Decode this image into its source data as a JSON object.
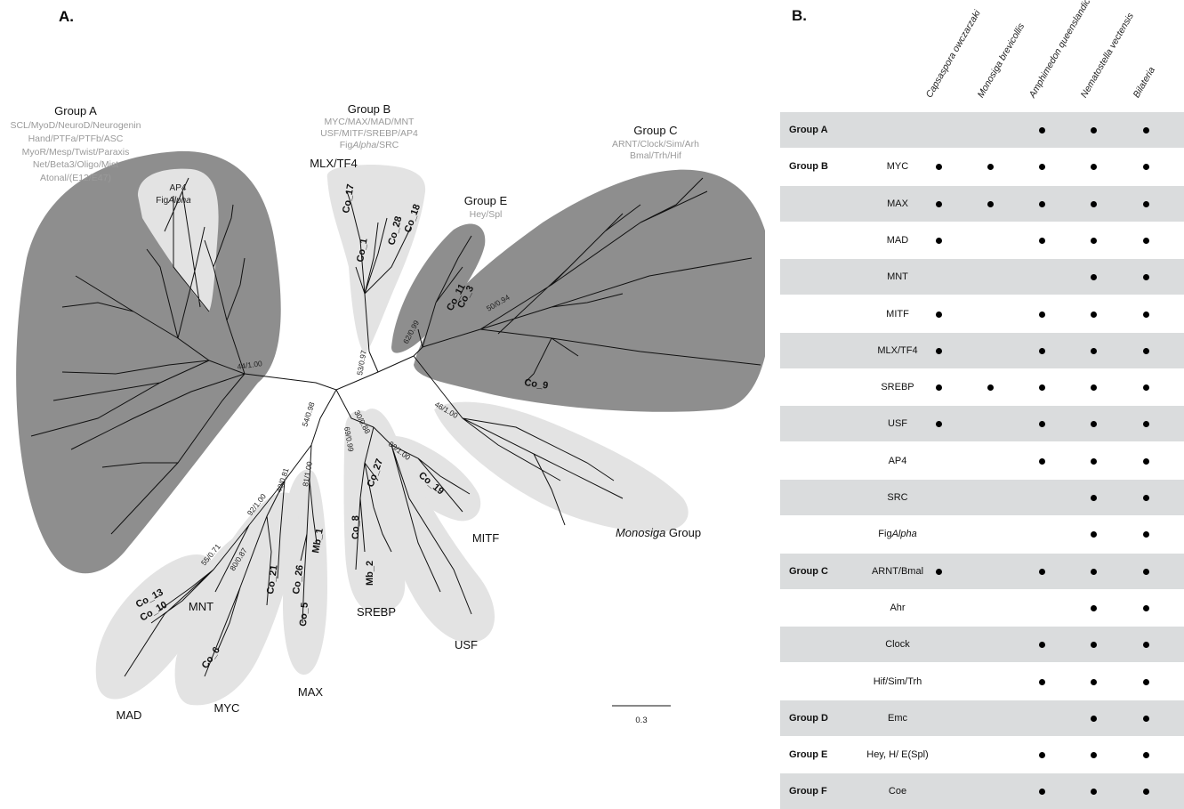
{
  "tree": {
    "panel_label": "A.",
    "groups": {
      "A": {
        "title": "Group A",
        "subtitle": [
          "SCL/MyoD/NeuroD/Neurogenin",
          "Hand/PTFa/PTFb/ASC",
          "MyoR/Mesp/Twist/Paraxis",
          "Net/Beta3/Oligo/Mist",
          "Atonal/(E12/E47)"
        ]
      },
      "B": {
        "title": "Group B",
        "subtitle_1": "MYC/MAX/MAD/MNT",
        "subtitle_2": "USF/MITF/SREBP/AP4",
        "subtitle_3_prefix": "Fig",
        "subtitle_3_italic": "Alpha",
        "subtitle_3_suffix": "/SRC"
      },
      "C": {
        "title": "Group C",
        "subtitle": [
          "ARNT/Clock/Sim/Arh",
          "Bmal/Trh/Hif"
        ]
      },
      "E": {
        "title": "Group E",
        "subtitle": [
          "Hey/Spl"
        ]
      }
    },
    "ap4": {
      "line1": "AP4",
      "line2_prefix": "Fig",
      "line2_italic": "Alpha"
    },
    "clades": {
      "mlx": "MLX/TF4",
      "mad": "MAD",
      "mnt": "MNT",
      "myc": "MYC",
      "max": "MAX",
      "srebp": "SREBP",
      "usf": "USF",
      "mitf": "MITF",
      "monosiga_italic": "Monosiga",
      "monosiga_suffix": " Group"
    },
    "leaves": {
      "co17": "Co_17",
      "co1": "Co_1",
      "co28": "Co_28",
      "co18": "Co_18",
      "co11": "Co_11",
      "co3": "Co_3",
      "co9": "Co_9",
      "co13": "Co_13",
      "co10": "Co_10",
      "co6": "Co_6",
      "co21": "Co_21",
      "co26": "Co_26",
      "mb1": "Mb_1",
      "co5": "Co_5",
      "co8": "Co_8",
      "mb2": "Mb_2",
      "co27": "Co_27",
      "co19": "Co_19"
    },
    "supports": {
      "s44": "44/1.00",
      "s53": "53/0.97",
      "s62": "62/0.99",
      "s50": "50/0.94",
      "s54": "54/0.98",
      "s92": "92/1.00",
      "s40": "40/0.81",
      "s81": "81/1.00",
      "s55": "55/0.71",
      "s80": "80/0.87",
      "s69": "69/0.99",
      "s30": "30/0.88",
      "s88": "88/1.00",
      "s46": "46/1.00"
    },
    "scale_label": "0.3",
    "colors": {
      "dark_group": "#8e8e8e",
      "light_group": "#e3e3e3",
      "branch": "#111111"
    }
  },
  "table": {
    "panel_label": "B.",
    "species": [
      "Capsaspora owczarzaki",
      "Monosiga brevicollis",
      "Amphimedon queenslandica",
      "Nematostella vectensis",
      "Bilateria"
    ],
    "rows": [
      {
        "group": "Group A",
        "gene": "",
        "presence": [
          0,
          0,
          1,
          1,
          1
        ]
      },
      {
        "group": "Group B",
        "gene": "MYC",
        "presence": [
          1,
          1,
          1,
          1,
          1
        ]
      },
      {
        "group": "",
        "gene": "MAX",
        "presence": [
          1,
          1,
          1,
          1,
          1
        ]
      },
      {
        "group": "",
        "gene": "MAD",
        "presence": [
          1,
          0,
          1,
          1,
          1
        ]
      },
      {
        "group": "",
        "gene": "MNT",
        "presence": [
          0,
          0,
          0,
          1,
          1
        ]
      },
      {
        "group": "",
        "gene": "MITF",
        "presence": [
          1,
          0,
          1,
          1,
          1
        ]
      },
      {
        "group": "",
        "gene": "MLX/TF4",
        "presence": [
          1,
          0,
          1,
          1,
          1
        ]
      },
      {
        "group": "",
        "gene": "SREBP",
        "presence": [
          1,
          1,
          1,
          1,
          1
        ]
      },
      {
        "group": "",
        "gene": "USF",
        "presence": [
          1,
          0,
          1,
          1,
          1
        ]
      },
      {
        "group": "",
        "gene": "AP4",
        "presence": [
          0,
          0,
          1,
          1,
          1
        ]
      },
      {
        "group": "",
        "gene": "SRC",
        "presence": [
          0,
          0,
          0,
          1,
          1
        ]
      },
      {
        "group": "",
        "gene": "FigAlpha",
        "gene_prefix": "Fig",
        "gene_italic": "Alpha",
        "presence": [
          0,
          0,
          0,
          1,
          1
        ]
      },
      {
        "group": "Group C",
        "gene": "ARNT/Bmal",
        "presence": [
          1,
          0,
          1,
          1,
          1
        ]
      },
      {
        "group": "",
        "gene": "Ahr",
        "presence": [
          0,
          0,
          0,
          1,
          1
        ]
      },
      {
        "group": "",
        "gene": "Clock",
        "presence": [
          0,
          0,
          1,
          1,
          1
        ]
      },
      {
        "group": "",
        "gene": "Hif/Sim/Trh",
        "presence": [
          0,
          0,
          1,
          1,
          1
        ]
      },
      {
        "group": "Group D",
        "gene": "Emc",
        "presence": [
          0,
          0,
          0,
          1,
          1
        ]
      },
      {
        "group": "Group E",
        "gene": "Hey, H/ E(Spl)",
        "presence": [
          0,
          0,
          1,
          1,
          1
        ]
      },
      {
        "group": "Group F",
        "gene": "Coe",
        "presence": [
          0,
          0,
          1,
          1,
          1
        ]
      }
    ],
    "colors": {
      "shade": "#dadcdd",
      "dot": "#000000"
    }
  }
}
